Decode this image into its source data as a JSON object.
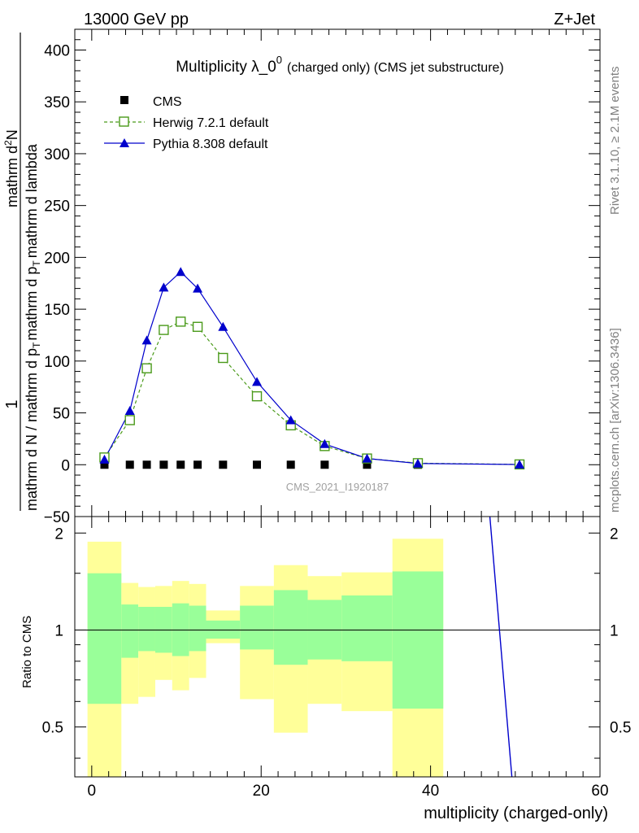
{
  "header": {
    "left": "13000 GeV pp",
    "right": "Z+Jet"
  },
  "side_labels": {
    "rivet": "Rivet 3.1.10, ≥ 2.1M events",
    "mcplots": "mcplots.cern.ch [arXiv:1306.3436]"
  },
  "chart_data": [
    {
      "type": "line",
      "panel": "main",
      "title_main": "Multiplicity λ_0",
      "title_sup": "0",
      "title_suffix": "(charged only) (CMS jet substructure)",
      "ylabel": "1 / mathrm d N / mathrm d p_T mathrm d p_T mathrm d lambda mathrm d^2N",
      "ylabel_lines": {
        "one": "1",
        "denominator": "mathrm d N / mathrm d p",
        "den_sub": "T",
        "den_tail": "mathrm d p",
        "den_sub2": "T",
        "den_end": "mathrm d lambda",
        "numerator": "mathrm d",
        "num_sup": "2",
        "num_end": "N"
      },
      "xlim": [
        -2,
        60
      ],
      "ylim": [
        -50,
        420
      ],
      "yticks": [
        -50,
        0,
        50,
        100,
        150,
        200,
        250,
        300,
        350,
        400
      ],
      "ytick_labels": [
        "−50",
        "0",
        "50",
        "100",
        "150",
        "200",
        "250",
        "300",
        "350",
        "400"
      ],
      "watermark": "CMS_2021_I1920187",
      "series": [
        {
          "name": "CMS",
          "style": "square-marker",
          "color": "#000000",
          "x": [
            1.5,
            4.5,
            6.5,
            8.5,
            10.5,
            12.5,
            15.5,
            19.5,
            23.5,
            27.5,
            32.5,
            38.5,
            50.5
          ],
          "values": [
            0,
            0,
            0,
            0,
            0,
            0,
            0,
            0,
            0,
            0,
            0,
            0,
            0
          ]
        },
        {
          "name": "Herwig 7.2.1 default",
          "style": "dashed-open-square",
          "color": "#4a9a1a",
          "x": [
            1.5,
            4.5,
            6.5,
            8.5,
            10.5,
            12.5,
            15.5,
            19.5,
            23.5,
            27.5,
            32.5,
            38.5,
            50.5
          ],
          "values": [
            7,
            43,
            93,
            130,
            138,
            133,
            103,
            66,
            38,
            18,
            6,
            1.5,
            0.3
          ]
        },
        {
          "name": "Pythia 8.308 default",
          "style": "solid-filled-triangle",
          "color": "#0000cc",
          "x": [
            1.5,
            4.5,
            6.5,
            8.5,
            10.5,
            12.5,
            15.5,
            19.5,
            23.5,
            27.5,
            32.5,
            38.5,
            50.5
          ],
          "values": [
            5,
            52,
            120,
            171,
            186,
            170,
            133,
            80,
            43,
            20,
            6,
            1.2,
            0.2
          ]
        }
      ]
    },
    {
      "type": "area",
      "panel": "ratio",
      "ylabel": "Ratio to CMS",
      "xlabel": "multiplicity (charged-only)",
      "xlim": [
        -2,
        60
      ],
      "ylim": [
        0.35,
        2.25
      ],
      "yticks": [
        0.5,
        1,
        2
      ],
      "ytick_labels": [
        "0.5",
        "1",
        "2"
      ],
      "xticks": [
        0,
        20,
        40,
        60
      ],
      "xtick_labels": [
        "0",
        "20",
        "40",
        "60"
      ],
      "bands": [
        {
          "x0": -0.5,
          "x1": 3.5,
          "y_lo": 0.35,
          "y_hi": 1.88,
          "g_lo": 0.59,
          "g_hi": 1.5
        },
        {
          "x0": 3.5,
          "x1": 5.5,
          "y_lo": 0.59,
          "y_hi": 1.4,
          "g_lo": 0.82,
          "g_hi": 1.2
        },
        {
          "x0": 5.5,
          "x1": 7.5,
          "y_lo": 0.62,
          "y_hi": 1.36,
          "g_lo": 0.86,
          "g_hi": 1.18
        },
        {
          "x0": 7.5,
          "x1": 9.5,
          "y_lo": 0.7,
          "y_hi": 1.37,
          "g_lo": 0.85,
          "g_hi": 1.18
        },
        {
          "x0": 9.5,
          "x1": 11.5,
          "y_lo": 0.65,
          "y_hi": 1.42,
          "g_lo": 0.83,
          "g_hi": 1.21
        },
        {
          "x0": 11.5,
          "x1": 13.5,
          "y_lo": 0.71,
          "y_hi": 1.39,
          "g_lo": 0.86,
          "g_hi": 1.19
        },
        {
          "x0": 13.5,
          "x1": 17.5,
          "y_lo": 0.91,
          "y_hi": 1.15,
          "g_lo": 0.94,
          "g_hi": 1.07
        },
        {
          "x0": 17.5,
          "x1": 21.5,
          "y_lo": 0.61,
          "y_hi": 1.37,
          "g_lo": 0.87,
          "g_hi": 1.19
        },
        {
          "x0": 21.5,
          "x1": 25.5,
          "y_lo": 0.48,
          "y_hi": 1.59,
          "g_lo": 0.78,
          "g_hi": 1.33
        },
        {
          "x0": 25.5,
          "x1": 29.5,
          "y_lo": 0.59,
          "y_hi": 1.47,
          "g_lo": 0.81,
          "g_hi": 1.24
        },
        {
          "x0": 29.5,
          "x1": 35.5,
          "y_lo": 0.56,
          "y_hi": 1.51,
          "g_lo": 0.8,
          "g_hi": 1.28
        },
        {
          "x0": 35.5,
          "x1": 41.5,
          "y_lo": 0.35,
          "y_hi": 1.92,
          "g_lo": 0.57,
          "g_hi": 1.52
        }
      ],
      "reference_line": 1,
      "pythia_line": {
        "x": [
          47.0,
          49.6
        ],
        "values": [
          2.25,
          0.35
        ]
      }
    }
  ]
}
